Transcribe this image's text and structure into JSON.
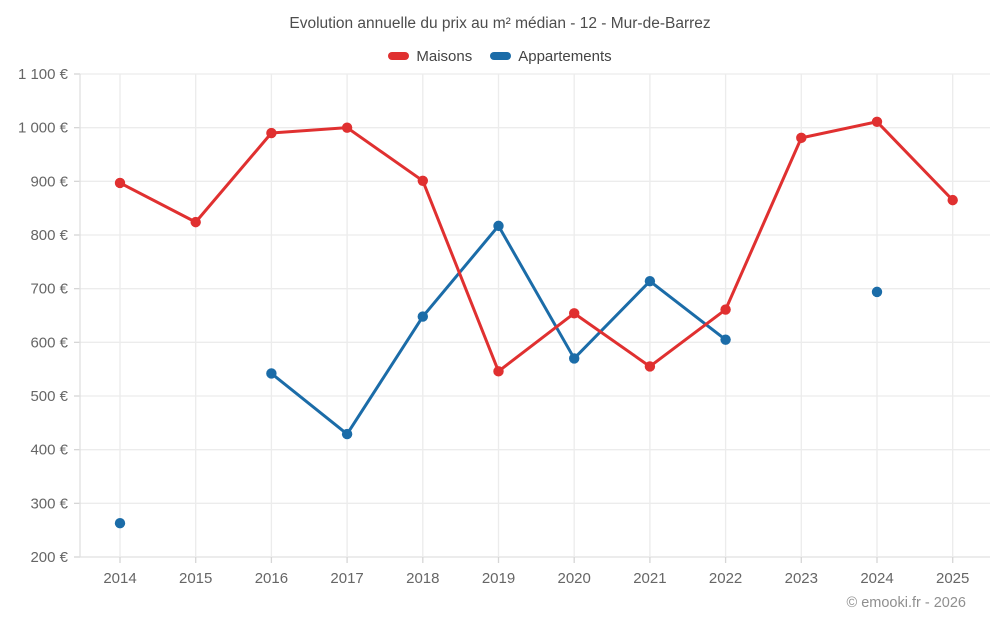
{
  "title": "Evolution annuelle du prix au m² médian - 12 - Mur-de-Barrez",
  "watermark": "© emooki.fr - 2026",
  "colors": {
    "maisons": "#e03030",
    "appartements": "#1b6ca8",
    "gridline": "#ececec",
    "axis_line": "#e0e0e0",
    "tick_mark": "#d6d6d6"
  },
  "chart_data": {
    "type": "line",
    "title": "Evolution annuelle du prix au m² médian - 12 - Mur-de-Barrez",
    "x": [
      2014,
      2015,
      2016,
      2017,
      2018,
      2019,
      2020,
      2021,
      2022,
      2023,
      2024,
      2025
    ],
    "series": [
      {
        "name": "Maisons",
        "color": "#e03030",
        "values": [
          897,
          824,
          990,
          1000,
          901,
          546,
          654,
          555,
          661,
          981,
          1011,
          865
        ]
      },
      {
        "name": "Appartements",
        "color": "#1b6ca8",
        "values": [
          263,
          null,
          542,
          429,
          648,
          817,
          570,
          714,
          605,
          null,
          694,
          null
        ]
      }
    ],
    "ylim": [
      200,
      1100
    ],
    "yticks": [
      {
        "value": 200,
        "label": "200 €"
      },
      {
        "value": 300,
        "label": "300 €"
      },
      {
        "value": 400,
        "label": "400 €"
      },
      {
        "value": 500,
        "label": "500 €"
      },
      {
        "value": 600,
        "label": "600 €"
      },
      {
        "value": 700,
        "label": "700 €"
      },
      {
        "value": 800,
        "label": "800 €"
      },
      {
        "value": 900,
        "label": "900 €"
      },
      {
        "value": 1000,
        "label": "1 000 €"
      },
      {
        "value": 1100,
        "label": "1 100 €"
      }
    ],
    "grid": true,
    "legend_position": "top"
  }
}
